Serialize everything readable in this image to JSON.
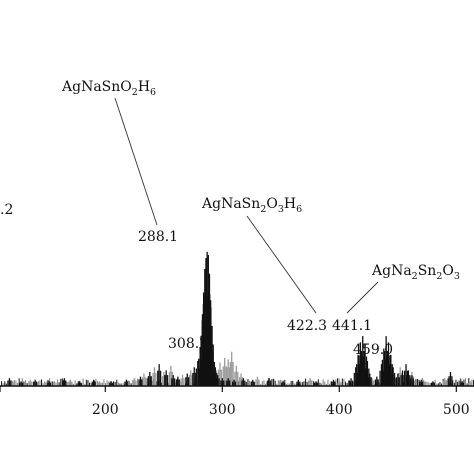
{
  "chart_data": {
    "type": "bar",
    "title": "",
    "xlabel": "",
    "ylabel": "",
    "xlim": [
      110,
      570
    ],
    "ylim": [
      0,
      100
    ],
    "x_ticks": [
      "200",
      "300",
      "400",
      "500"
    ],
    "x_tick_values": [
      200,
      300,
      400,
      500
    ],
    "grid": false,
    "series": [
      {
        "color": "#111111",
        "x": [
          118,
          128,
          140,
          152,
          165,
          178,
          190,
          205,
          218,
          230,
          238,
          246,
          252,
          258,
          262,
          270,
          276,
          279,
          281,
          283,
          284,
          285,
          286,
          287,
          288,
          289,
          290,
          291,
          292,
          294,
          296,
          300,
          305,
          310,
          318,
          326,
          340,
          352,
          365,
          380,
          395,
          410,
          414,
          416,
          418,
          420,
          422,
          424,
          426,
          432,
          436,
          438,
          440,
          442,
          444,
          446,
          450,
          454,
          457,
          459,
          462,
          470,
          480,
          495,
          505,
          520,
          535,
          550,
          565
        ],
        "y": [
          5,
          3,
          4,
          3,
          5,
          3,
          4,
          3,
          4,
          6,
          9,
          14,
          10,
          7,
          6,
          8,
          12,
          16,
          25,
          46,
          60,
          75,
          82,
          86,
          84,
          72,
          55,
          38,
          22,
          12,
          7,
          5,
          5,
          4,
          5,
          4,
          5,
          3,
          4,
          3,
          4,
          5,
          12,
          20,
          28,
          32,
          27,
          16,
          8,
          6,
          14,
          24,
          32,
          28,
          20,
          12,
          8,
          10,
          14,
          10,
          7,
          4,
          3,
          9,
          3,
          4,
          3,
          3,
          3
        ]
      },
      {
        "color": "#9a9a9a",
        "x": [
          120,
          136,
          150,
          170,
          195,
          225,
          233,
          242,
          250,
          256,
          266,
          273,
          295,
          298,
          302,
          305,
          308,
          312,
          316,
          330,
          350,
          375,
          400,
          428,
          445,
          452,
          462,
          472,
          490,
          512,
          530,
          548,
          560
        ],
        "y": [
          3,
          4,
          3,
          4,
          3,
          5,
          8,
          12,
          9,
          13,
          7,
          10,
          10,
          15,
          18,
          17,
          22,
          13,
          8,
          6,
          4,
          5,
          3,
          5,
          10,
          12,
          9,
          4,
          5,
          3,
          4,
          3,
          3
        ]
      }
    ],
    "annotations": [
      {
        "label": "288.1",
        "x": 288.1
      },
      {
        "label": "308.2",
        "x": 308.2
      },
      {
        "label": "422.3",
        "x": 422.3
      },
      {
        "label": "441.1",
        "x": 441.1
      },
      {
        "label": "459.0",
        "x": 459.0
      },
      {
        "label": ".2",
        "x": 115
      }
    ],
    "formulas": [
      {
        "text": "AgNaSnO2H6",
        "parts": [
          "AgNaSnO",
          "2",
          "H",
          "6"
        ]
      },
      {
        "text": "AgNaSn2O3H6",
        "parts": [
          "AgNaSn",
          "2",
          "O",
          "3",
          "H",
          "6"
        ]
      },
      {
        "text": "AgNa2Sn2O3",
        "parts": [
          "AgNa",
          "2",
          "Sn",
          "2",
          "O",
          "3"
        ]
      }
    ]
  }
}
